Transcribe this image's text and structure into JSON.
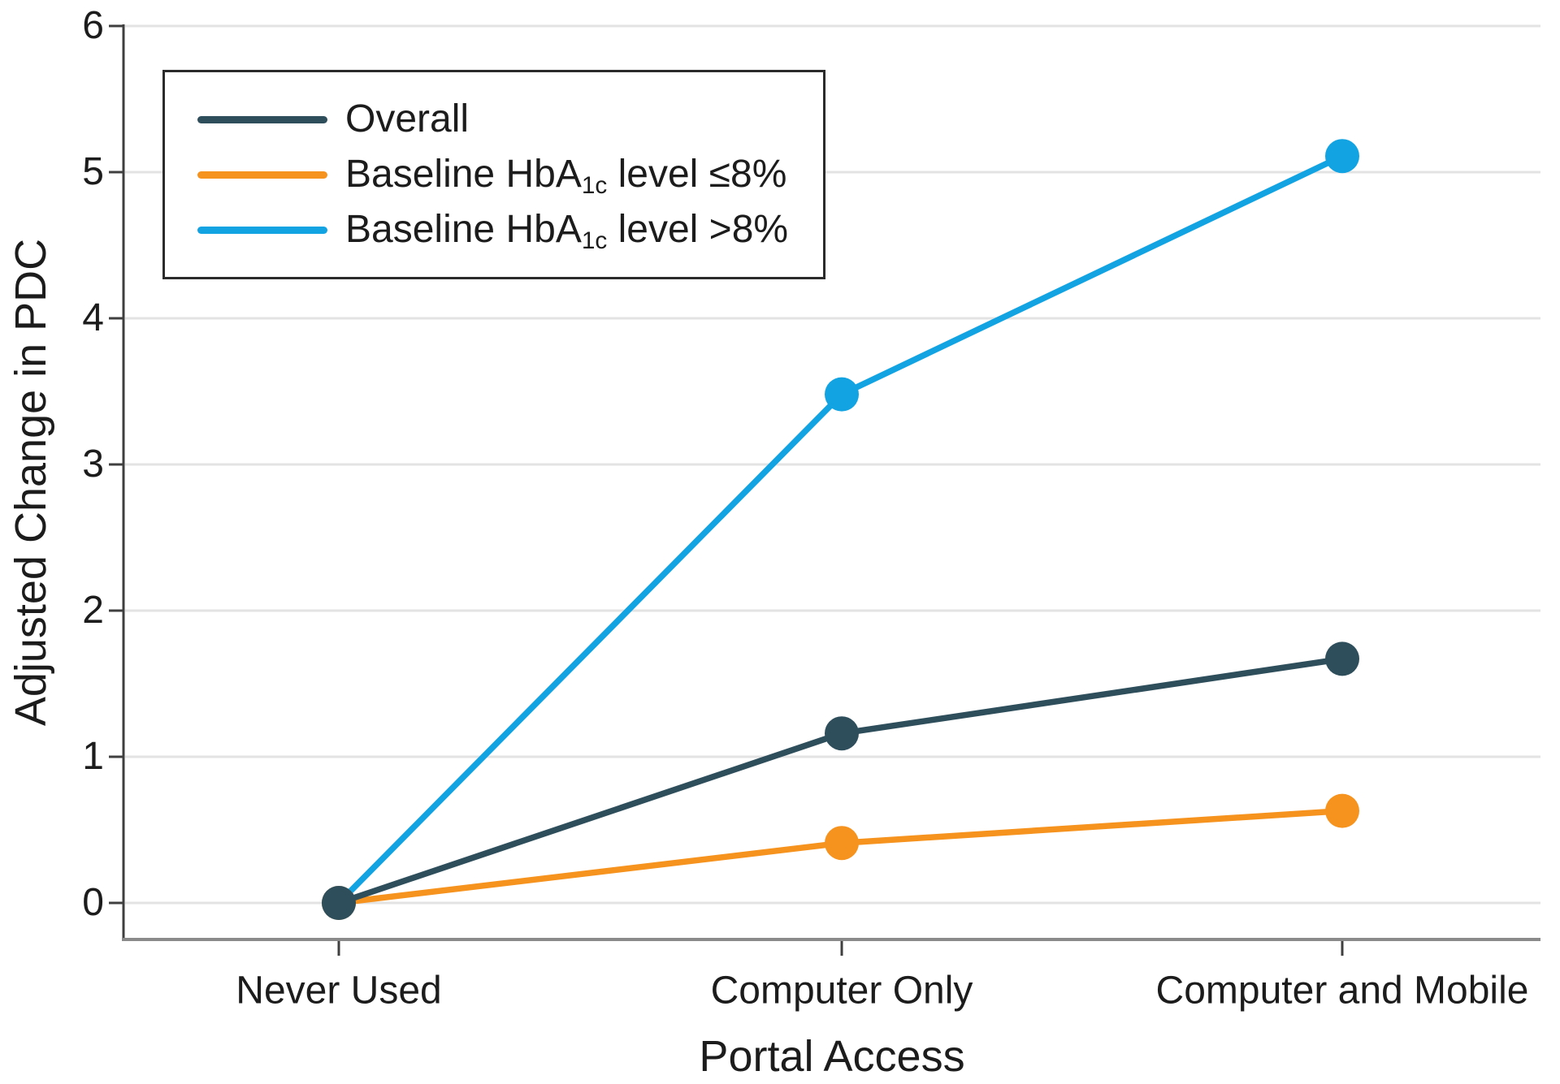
{
  "chart_data": {
    "type": "line",
    "title": "",
    "categories": [
      "Never Used",
      "Computer Only",
      "Computer and Mobile"
    ],
    "series": [
      {
        "name": "Overall",
        "label": {
          "pre": "Overall",
          "sub": "",
          "post": ""
        },
        "color": "#2e4e5c",
        "values": [
          0,
          1.16,
          1.67
        ]
      },
      {
        "name": "Baseline HbA1c level <=8%",
        "label": {
          "pre": "Baseline HbA",
          "sub": "1c",
          "post": " level ≤8%"
        },
        "color": "#f6921e",
        "values": [
          0,
          0.41,
          0.63
        ]
      },
      {
        "name": "Baseline HbA1c level >8%",
        "label": {
          "pre": "Baseline HbA",
          "sub": "1c",
          "post": " level >8%"
        },
        "color": "#12a3e2",
        "values": [
          0,
          3.48,
          5.11
        ]
      }
    ],
    "xlabel": "Portal Access",
    "ylabel": "Adjusted Change in PDC",
    "ylim": [
      0,
      6
    ],
    "yticks": [
      0,
      1,
      2,
      3,
      4,
      5,
      6
    ],
    "grid": "horizontal",
    "legend_position": "top-left",
    "marker": "circle",
    "colors": {
      "grid": "#e3e3e3",
      "x_axis_line": "#8a8a8a",
      "y_axis_line": "#3f3f3f",
      "text": "#1c1c1c",
      "legend_border": "#2b2b2b",
      "background": "#ffffff"
    }
  }
}
